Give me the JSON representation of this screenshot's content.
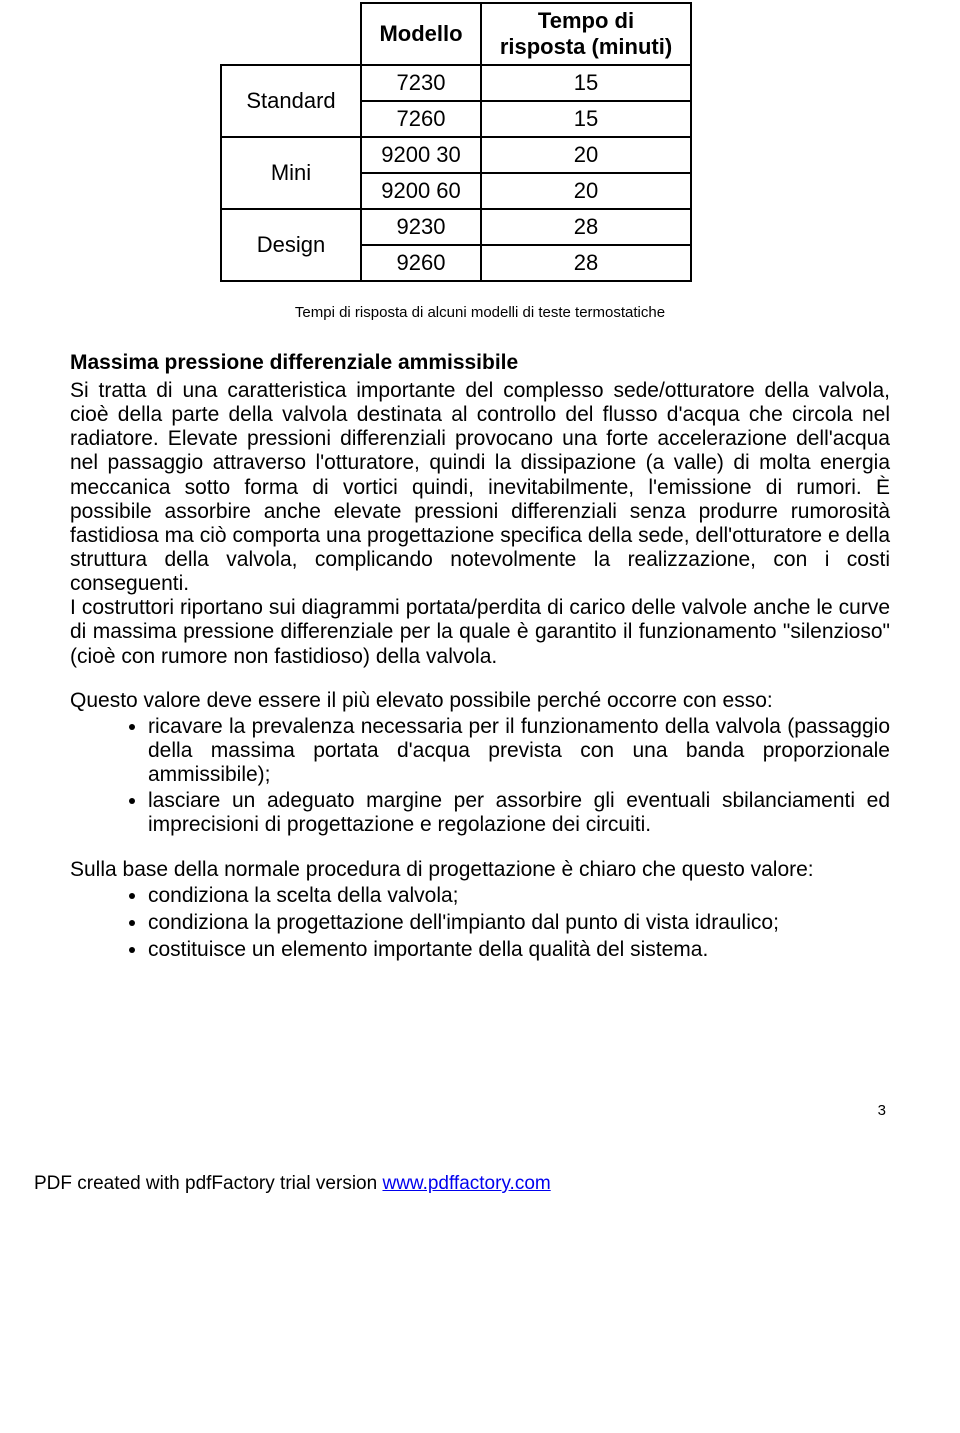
{
  "table": {
    "headers": {
      "col2": "Modello",
      "col3": "Tempo di risposta (minuti)"
    },
    "groups": [
      {
        "category": "Standard",
        "rows": [
          {
            "model": "7230",
            "time": "15"
          },
          {
            "model": "7260",
            "time": "15"
          }
        ]
      },
      {
        "category": "Mini",
        "rows": [
          {
            "model": "9200 30",
            "time": "20"
          },
          {
            "model": "9200 60",
            "time": "20"
          }
        ]
      },
      {
        "category": "Design",
        "rows": [
          {
            "model": "9230",
            "time": "28"
          },
          {
            "model": "9260",
            "time": "28"
          }
        ]
      }
    ]
  },
  "caption": "Tempi di risposta di alcuni modelli di teste termostatiche",
  "section_title": "Massima pressione differenziale ammissibile",
  "para1": "Si tratta di una caratteristica importante del complesso sede/otturatore della valvola, cioè della parte della valvola destinata al controllo del flusso d'acqua che circola nel radiatore. Elevate pressioni differenziali provocano una forte accelerazione dell'acqua nel passaggio attraverso l'otturatore, quindi la dissipazione (a valle) di molta energia meccanica sotto forma di vortici quindi, inevitabilmente, l'emissione di rumori. È possibile assorbire anche elevate pressioni differenziali senza produrre rumorosità fastidiosa ma ciò comporta una progettazione specifica della sede, dell'otturatore e della struttura della valvola, complicando notevolmente la realizzazione, con i costi conseguenti.",
  "para2": "I costruttori riportano sui diagrammi portata/perdita di carico delle valvole anche le curve di massima pressione differenziale per la quale è garantito il funzionamento \"silenzioso\" (cioè con rumore non fastidioso) della valvola.",
  "para3_intro": "Questo valore deve essere il più elevato possibile perché occorre con esso:",
  "bullets1": [
    "ricavare la prevalenza necessaria per il funzionamento della valvola (passaggio della massima portata d'acqua prevista con una banda proporzionale ammissibile);",
    "lasciare un adeguato margine per assorbire gli eventuali sbilanciamenti ed imprecisioni di progettazione e regolazione dei circuiti."
  ],
  "para4_intro": "Sulla base della normale procedura di progettazione è chiaro che questo valore:",
  "bullets2": [
    "condiziona la scelta della valvola;",
    "condiziona la progettazione dell'impianto dal punto di vista idraulico;",
    "costituisce un elemento importante della qualità del sistema."
  ],
  "page_number": "3",
  "footer_text": "PDF created with pdfFactory trial version ",
  "footer_link": "www.pdffactory.com"
}
